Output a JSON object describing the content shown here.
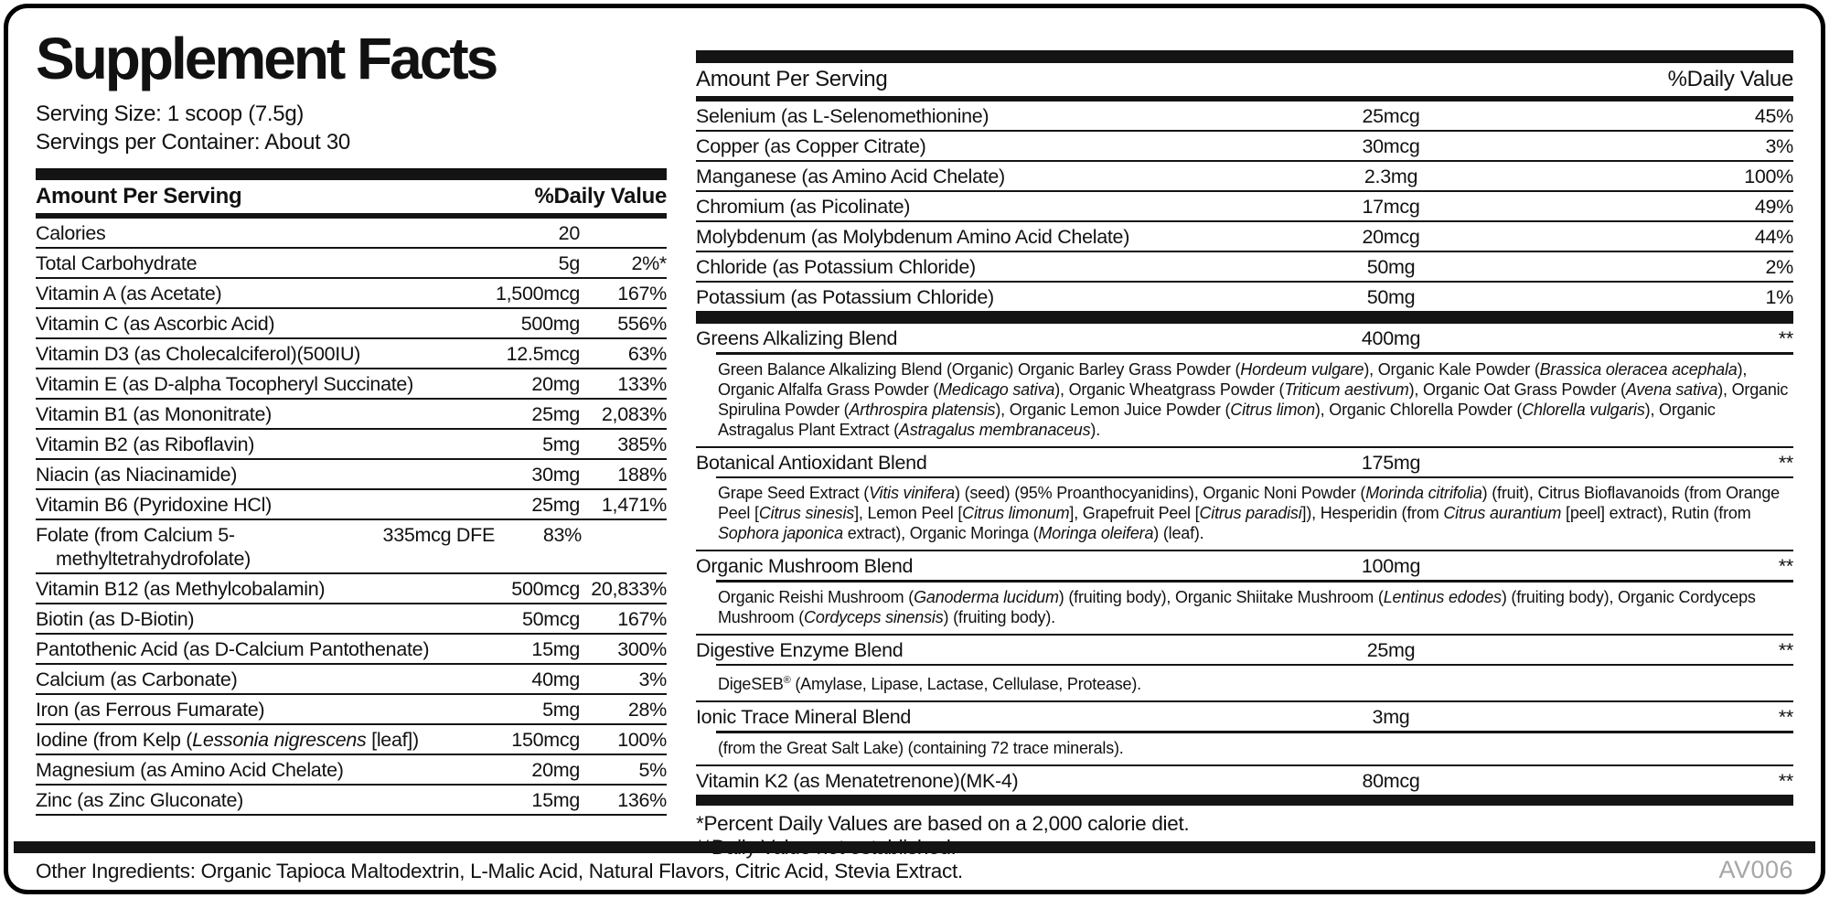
{
  "label": {
    "title": "Supplement Facts",
    "serving_size": "Serving Size: 1 scoop (7.5g)",
    "servings_per_container": "Servings per Container: About 30",
    "amount_header": "Amount Per Serving",
    "dv_header": "%Daily Value",
    "footnotes": [
      "*Percent Daily Values are based on a 2,000 calorie diet.",
      "**Daily Value not established."
    ],
    "other_ingredients": "Other Ingredients: Organic Tapioca Maltodextrin, L-Malic Acid, Natural Flavors, Citric Acid, Stevia Extract.",
    "code": "AV006",
    "colors": {
      "text": "#111111",
      "background": "#ffffff",
      "code_gray": "#a6a6a8"
    }
  },
  "left_rows": [
    {
      "name": "Calories",
      "amount": "20",
      "dv": ""
    },
    {
      "name": "Total Carbohydrate",
      "amount": "5g",
      "dv": "2%*"
    },
    {
      "name": "Vitamin A (as Acetate)",
      "amount": "1,500mcg",
      "dv": "167%"
    },
    {
      "name": "Vitamin C (as Ascorbic Acid)",
      "amount": "500mg",
      "dv": "556%"
    },
    {
      "name": "Vitamin D3 (as Cholecalciferol)(500IU)",
      "amount": "12.5mcg",
      "dv": "63%"
    },
    {
      "name": "Vitamin E (as D-alpha Tocopheryl Succinate)",
      "amount": "20mg",
      "dv": "133%"
    },
    {
      "name": "Vitamin B1 (as Mononitrate)",
      "amount": "25mg",
      "dv": "2,083%"
    },
    {
      "name": "Vitamin B2 (as Riboflavin)",
      "amount": "5mg",
      "dv": "385%"
    },
    {
      "name": "Niacin (as Niacinamide)",
      "amount": "30mg",
      "dv": "188%"
    },
    {
      "name": "Vitamin B6 (Pyridoxine HCl)",
      "amount": "25mg",
      "dv": "1,471%"
    },
    {
      "name": "Folate (from Calcium 5-methyltetrahydrofolate)",
      "amount": "335mcg DFE",
      "dv": "83%",
      "wrap": true
    },
    {
      "name": "Vitamin B12 (as Methylcobalamin)",
      "amount": "500mcg",
      "dv": "20,833%"
    },
    {
      "name": "Biotin (as D-Biotin)",
      "amount": "50mcg",
      "dv": "167%"
    },
    {
      "name": "Pantothenic Acid (as D-Calcium Pantothenate)",
      "amount": "15mg",
      "dv": "300%"
    },
    {
      "name": "Calcium (as Carbonate)",
      "amount": "40mg",
      "dv": "3%"
    },
    {
      "name": "Iron (as Ferrous Fumarate)",
      "amount": "5mg",
      "dv": "28%"
    },
    {
      "name": "Iodine (from Kelp (*Lessonia nigrescens* [leaf])",
      "amount": "150mcg",
      "dv": "100%"
    },
    {
      "name": "Magnesium (as Amino Acid Chelate)",
      "amount": "20mg",
      "dv": "5%"
    },
    {
      "name": "Zinc (as Zinc Gluconate)",
      "amount": "15mg",
      "dv": "136%"
    }
  ],
  "right_rows": [
    {
      "name": "Selenium (as L-Selenomethionine)",
      "amount": "25mcg",
      "dv": "45%"
    },
    {
      "name": "Copper (as Copper Citrate)",
      "amount": "30mcg",
      "dv": "3%"
    },
    {
      "name": "Manganese (as Amino Acid Chelate)",
      "amount": "2.3mg",
      "dv": "100%"
    },
    {
      "name": "Chromium (as Picolinate)",
      "amount": "17mcg",
      "dv": "49%"
    },
    {
      "name": "Molybdenum (as Molybdenum Amino Acid Chelate)",
      "amount": "20mcg",
      "dv": "44%"
    },
    {
      "name": "Chloride (as Potassium Chloride)",
      "amount": "50mg",
      "dv": "2%"
    },
    {
      "name": "Potassium (as Potassium Chloride)",
      "amount": "50mg",
      "dv": "1%"
    }
  ],
  "blends": [
    {
      "name": "Greens Alkalizing Blend",
      "amount": "400mg",
      "dv": "**",
      "description": "Green Balance Alkalizing Blend (Organic) Organic Barley Grass Powder (*Hordeum vulgare*), Organic Kale Powder (*Brassica oleracea acephala*), Organic Alfalfa Grass Powder (*Medicago sativa*), Organic Wheatgrass Powder (*Triticum aestivum*), Organic Oat Grass Powder (*Avena sativa*), Organic Spirulina Powder (*Arthrospira platensis*), Organic Lemon Juice Powder (*Citrus limon*), Organic Chlorella Powder (*Chlorella vulgaris*), Organic Astragalus Plant Extract (*Astragalus membranaceus*)."
    },
    {
      "name": "Botanical Antioxidant Blend",
      "amount": "175mg",
      "dv": "**",
      "description": "Grape Seed Extract (*Vitis vinifera*) (seed) (95% Proanthocyanidins), Organic Noni Powder (*Morinda citrifolia*) (fruit), Citrus Bioflavanoids (from Orange Peel [*Citrus sinesis*], Lemon Peel [*Citrus limonum*], Grapefruit Peel [*Citrus paradisi*]), Hesperidin (from *Citrus aurantium* [peel] extract), Rutin (from *Sophora japonica* extract), Organic Moringa (*Moringa oleifera*) (leaf)."
    },
    {
      "name": "Organic Mushroom Blend",
      "amount": "100mg",
      "dv": "**",
      "description": "Organic Reishi Mushroom (*Ganoderma lucidum*) (fruiting body), Organic Shiitake Mushroom (*Lentinus edodes*) (fruiting body), Organic Cordyceps Mushroom (*Cordyceps sinensis*) (fruiting body)."
    },
    {
      "name": "Digestive Enzyme Blend",
      "amount": "25mg",
      "dv": "**",
      "description": "DigeSEB® (Amylase, Lipase, Lactase, Cellulase, Protease)."
    },
    {
      "name": "Ionic Trace Mineral Blend",
      "amount": "3mg",
      "dv": "**",
      "description": "(from the Great Salt Lake) (containing 72 trace minerals)."
    },
    {
      "name": "Vitamin K2 (as Menatetrenone)(MK-4)",
      "amount": "80mcg",
      "dv": "**",
      "description": ""
    }
  ]
}
